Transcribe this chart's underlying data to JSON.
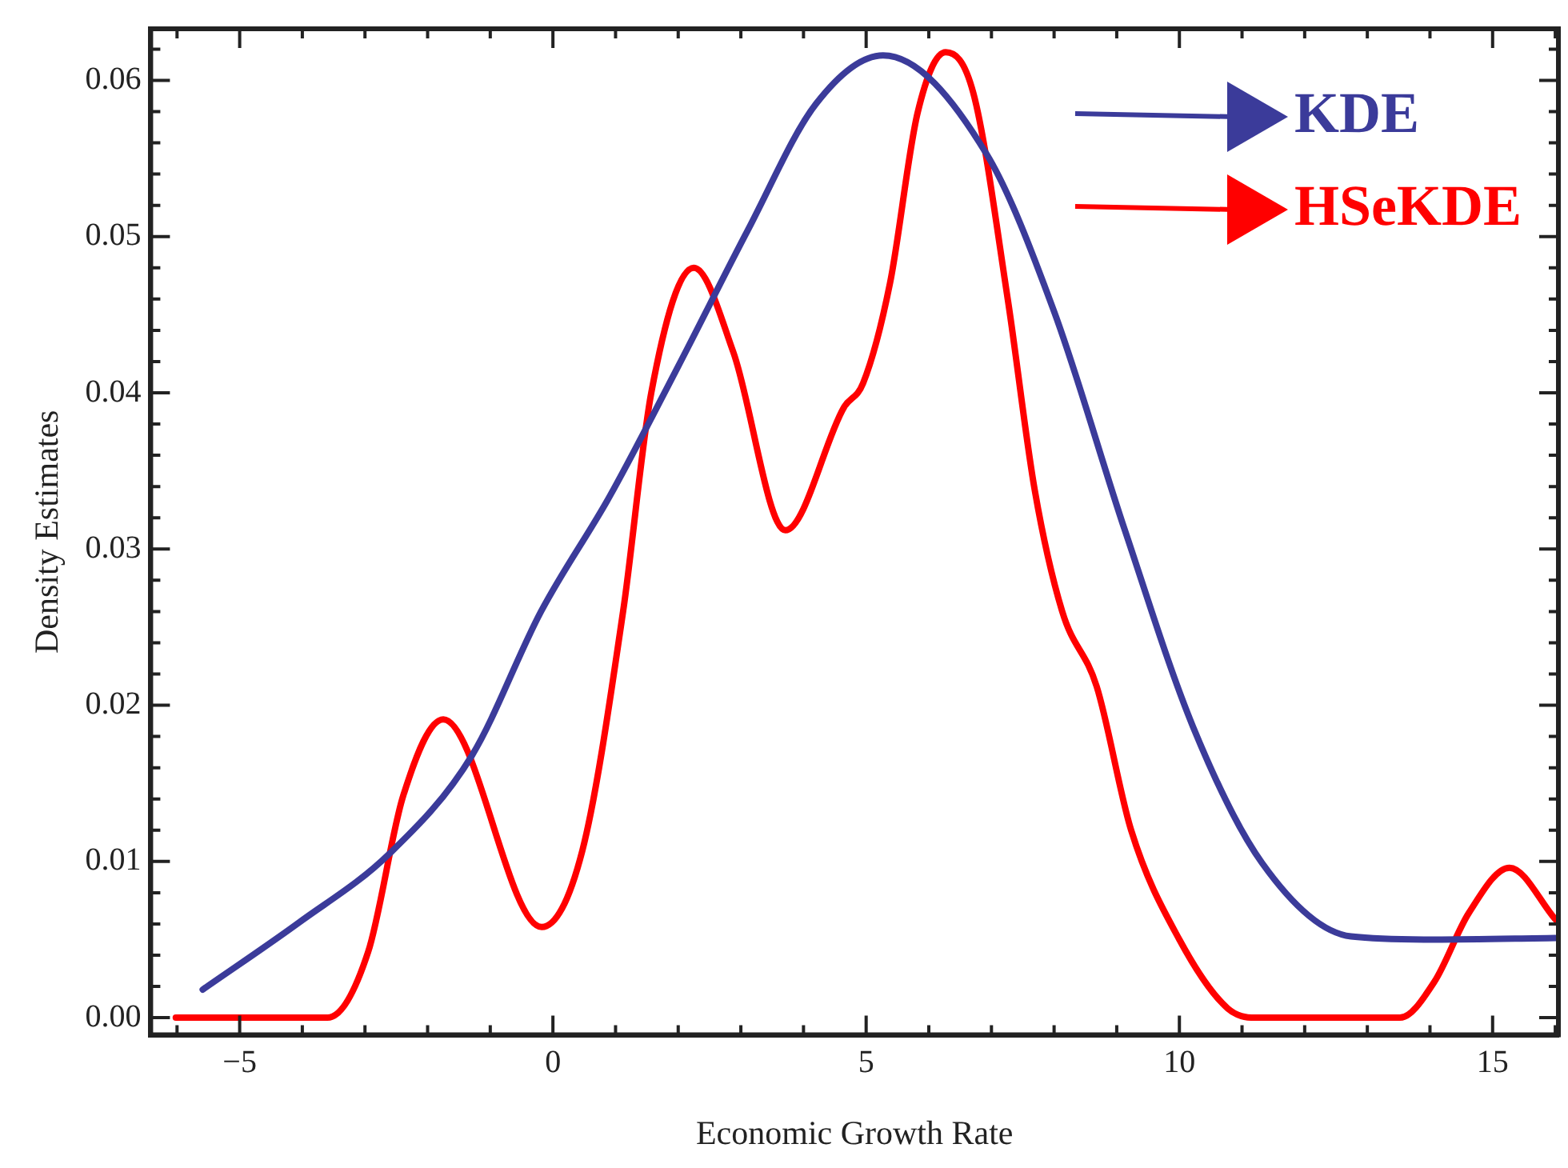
{
  "chart_data": {
    "type": "line",
    "xlabel": "Economic Growth Rate",
    "ylabel": "Density Estimates",
    "xlim": [
      -6.42,
      16.05
    ],
    "ylim": [
      -0.0011,
      0.0633
    ],
    "xticks": [
      {
        "value": -6,
        "label": null
      },
      {
        "value": -5,
        "label": "−5"
      },
      {
        "value": -4,
        "label": null
      },
      {
        "value": -3,
        "label": null
      },
      {
        "value": -2,
        "label": null
      },
      {
        "value": -1,
        "label": null
      },
      0,
      {
        "value": 1,
        "label": null
      },
      {
        "value": 2,
        "label": null
      },
      {
        "value": 3,
        "label": null
      },
      {
        "value": 4,
        "label": null
      },
      5,
      {
        "value": 6,
        "label": null
      },
      {
        "value": 7,
        "label": null
      },
      {
        "value": 8,
        "label": null
      },
      {
        "value": 9,
        "label": null
      },
      10,
      {
        "value": 11,
        "label": null
      },
      {
        "value": 12,
        "label": null
      },
      {
        "value": 13,
        "label": null
      },
      {
        "value": 14,
        "label": null
      },
      15,
      {
        "value": 16,
        "label": null
      }
    ],
    "yticks": [
      {
        "value": 0,
        "label": "0.00"
      },
      {
        "value": 0.002,
        "label": null
      },
      {
        "value": 0.004,
        "label": null
      },
      {
        "value": 0.006,
        "label": null
      },
      {
        "value": 0.008,
        "label": null
      },
      {
        "value": 0.01,
        "label": "0.01"
      },
      {
        "value": 0.012,
        "label": null
      },
      {
        "value": 0.014,
        "label": null
      },
      {
        "value": 0.016,
        "label": null
      },
      {
        "value": 0.018,
        "label": null
      },
      {
        "value": 0.02,
        "label": "0.02"
      },
      {
        "value": 0.022,
        "label": null
      },
      {
        "value": 0.024,
        "label": null
      },
      {
        "value": 0.026,
        "label": null
      },
      {
        "value": 0.028,
        "label": null
      },
      {
        "value": 0.03,
        "label": "0.03"
      },
      {
        "value": 0.032,
        "label": null
      },
      {
        "value": 0.034,
        "label": null
      },
      {
        "value": 0.036,
        "label": null
      },
      {
        "value": 0.038,
        "label": null
      },
      {
        "value": 0.04,
        "label": "0.04"
      },
      {
        "value": 0.042,
        "label": null
      },
      {
        "value": 0.044,
        "label": null
      },
      {
        "value": 0.046,
        "label": null
      },
      {
        "value": 0.048,
        "label": null
      },
      {
        "value": 0.05,
        "label": "0.05"
      },
      {
        "value": 0.052,
        "label": null
      },
      {
        "value": 0.054,
        "label": null
      },
      {
        "value": 0.056,
        "label": null
      },
      {
        "value": 0.058,
        "label": null
      },
      {
        "value": 0.06,
        "label": "0.06"
      },
      {
        "value": 0.062,
        "label": null
      }
    ],
    "grid": false,
    "legend": "top right",
    "marker": "none",
    "line_style": "solid",
    "series": [
      {
        "name": "KDE",
        "color": "#3b3b9a",
        "x": [
          -5.59,
          -4.05,
          -2.61,
          -1.29,
          -0.19,
          0.91,
          2.0,
          3.11,
          4.2,
          5.27,
          6.92,
          8.0,
          9.13,
          10.22,
          11.32,
          12.74,
          14.07,
          16.0
        ],
        "values": [
          0.0018,
          0.0061,
          0.0105,
          0.0168,
          0.026,
          0.0334,
          0.0417,
          0.0504,
          0.0585,
          0.0616,
          0.0553,
          0.0452,
          0.0312,
          0.0186,
          0.0099,
          0.0052,
          0.005,
          0.0051
        ]
      },
      {
        "name": "HSeKDE",
        "color": "#ff0000",
        "x": [
          -6.02,
          -3.6,
          -2.95,
          -2.39,
          -1.75,
          -0.18,
          0.47,
          1.12,
          1.57,
          2.25,
          2.88,
          3.71,
          4.65,
          4.95,
          5.38,
          5.82,
          6.27,
          6.71,
          7.26,
          7.69,
          8.13,
          8.68,
          9.23,
          10.0,
          10.77,
          11.21,
          13.52,
          14.07,
          14.62,
          15.27,
          16.0
        ],
        "values": [
          0,
          0,
          0.0042,
          0.0142,
          0.0191,
          0.0058,
          0.0107,
          0.026,
          0.04,
          0.048,
          0.0426,
          0.0312,
          0.0391,
          0.0406,
          0.047,
          0.0579,
          0.0618,
          0.0592,
          0.046,
          0.0338,
          0.026,
          0.0212,
          0.012,
          0.005,
          0.0006,
          0,
          0,
          0.0023,
          0.0067,
          0.0096,
          0.0063
        ]
      }
    ]
  }
}
